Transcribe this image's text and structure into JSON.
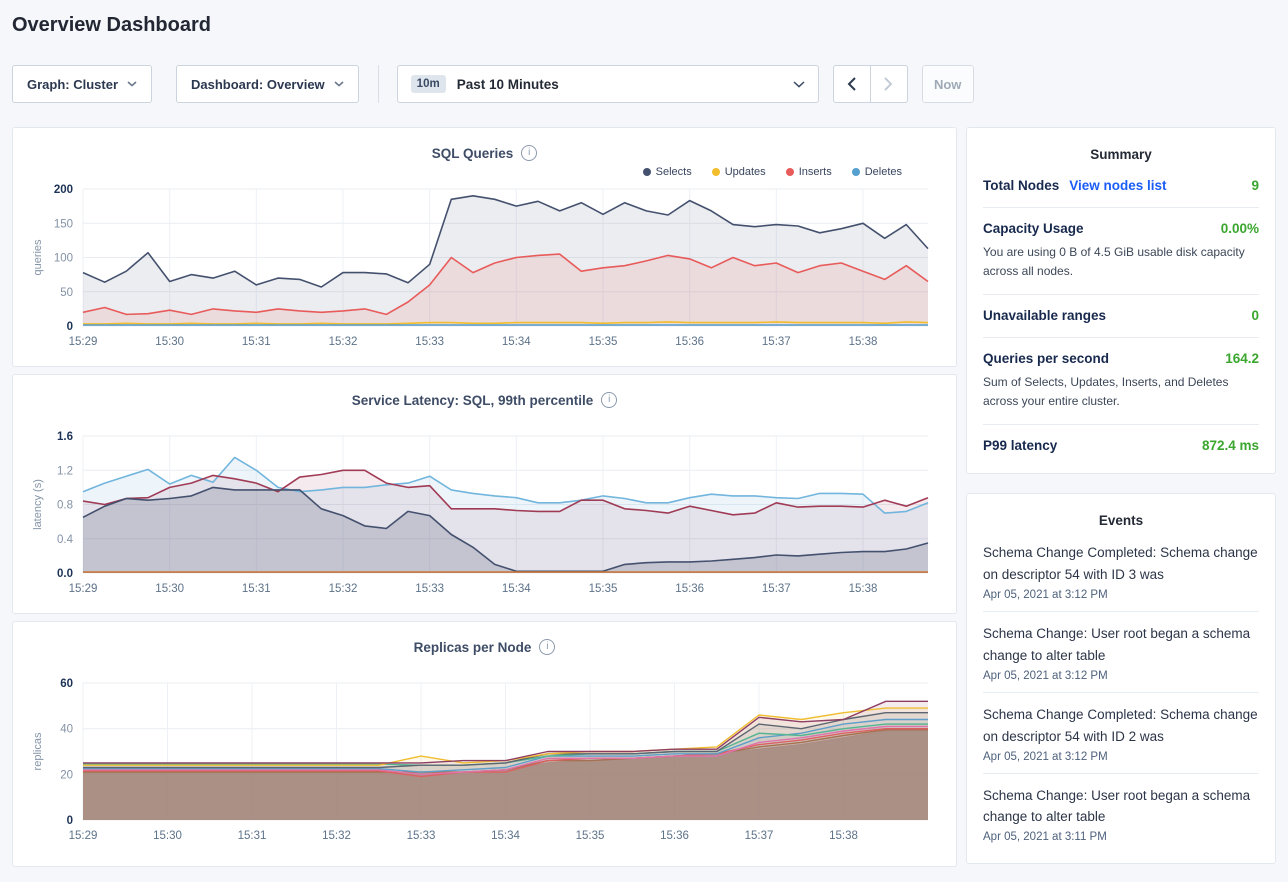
{
  "page": {
    "title": "Overview Dashboard"
  },
  "controls": {
    "graph_label": "Graph: Cluster",
    "dashboard_label": "Dashboard: Overview",
    "time_badge": "10m",
    "time_label": "Past 10 Minutes",
    "now_label": "Now"
  },
  "icons": {
    "chevron_down": "chevron-down-icon",
    "chevron_left": "chevron-left-icon",
    "chevron_right": "chevron-right-icon",
    "info": "info-icon"
  },
  "colors": {
    "accent_green": "#3aa62e",
    "link_blue": "#1b5df5",
    "selects_navy": "#44516e",
    "updates_yellow": "#f2be2d",
    "inserts_red": "#e85b5b",
    "deletes_blue": "#56a0d0"
  },
  "summary": {
    "title": "Summary",
    "items": [
      {
        "label": "Total Nodes",
        "link": "View nodes list",
        "value": "9"
      },
      {
        "label": "Capacity Usage",
        "value": "0.00%",
        "desc": "You are using 0 B of 4.5 GiB usable disk capacity across all nodes."
      },
      {
        "label": "Unavailable ranges",
        "value": "0"
      },
      {
        "label": "Queries per second",
        "value": "164.2",
        "desc": "Sum of Selects, Updates, Inserts, and Deletes across your entire cluster."
      },
      {
        "label": "P99 latency",
        "value": "872.4 ms"
      }
    ]
  },
  "events": {
    "title": "Events",
    "items": [
      {
        "text": "Schema Change Completed: Schema change on descriptor 54 with ID 3 was",
        "date": "Apr 05, 2021 at 3:12 PM"
      },
      {
        "text": "Schema Change: User root began a schema change to alter table",
        "date": "Apr 05, 2021 at 3:12 PM"
      },
      {
        "text": "Schema Change Completed: Schema change on descriptor 54 with ID 2 was",
        "date": "Apr 05, 2021 at 3:12 PM"
      },
      {
        "text": "Schema Change: User root began a schema change to alter table",
        "date": "Apr 05, 2021 at 3:11 PM"
      }
    ]
  },
  "chart_data": [
    {
      "type": "area",
      "title": "SQL Queries",
      "ylabel": "queries",
      "ylim": [
        0,
        200
      ],
      "yticks": [
        "0",
        "50",
        "100",
        "150",
        "200"
      ],
      "xticks": [
        "15:29",
        "15:30",
        "15:31",
        "15:32",
        "15:33",
        "15:34",
        "15:35",
        "15:36",
        "15:37",
        "15:38"
      ],
      "points_per_minute": 4,
      "grid": true,
      "legend_position": "top-right",
      "series": [
        {
          "name": "Selects",
          "color": "#44516e",
          "fill": 0.1,
          "values": [
            78,
            64,
            80,
            107,
            65,
            75,
            70,
            80,
            60,
            70,
            68,
            57,
            78,
            78,
            76,
            63,
            90,
            185,
            190,
            185,
            175,
            182,
            168,
            180,
            163,
            180,
            168,
            162,
            183,
            168,
            148,
            145,
            148,
            146,
            136,
            142,
            150,
            128,
            148,
            113
          ]
        },
        {
          "name": "Updates",
          "color": "#f2be2d",
          "fill": 0,
          "values": [
            3,
            3,
            4,
            3,
            3,
            4,
            3,
            3,
            4,
            3,
            3,
            4,
            3,
            3,
            3,
            4,
            5,
            5,
            4,
            4,
            5,
            5,
            5,
            5,
            4,
            5,
            5,
            6,
            5,
            5,
            5,
            5,
            6,
            5,
            5,
            5,
            5,
            4,
            6,
            5
          ]
        },
        {
          "name": "Inserts",
          "color": "#e85b5b",
          "fill": 0.12,
          "values": [
            20,
            27,
            17,
            18,
            23,
            17,
            25,
            22,
            20,
            25,
            22,
            20,
            22,
            25,
            17,
            35,
            60,
            100,
            78,
            92,
            100,
            103,
            105,
            80,
            85,
            88,
            95,
            103,
            98,
            85,
            100,
            88,
            92,
            78,
            88,
            92,
            80,
            68,
            88,
            65
          ]
        },
        {
          "name": "Deletes",
          "color": "#56a0d0",
          "fill": 0,
          "values": [
            1.5,
            1.5,
            1.5,
            1.5,
            1.5,
            1.5,
            1.5,
            1.5,
            1.5,
            1.5,
            1.5,
            1.5,
            1.5,
            1.5,
            1.5,
            1.5,
            1.5,
            1.5,
            1.5,
            1.5,
            1.5,
            1.5,
            1.5,
            1.5,
            1.5,
            1.5,
            1.5,
            1.5,
            1.5,
            1.5,
            1.5,
            1.5,
            1.5,
            1.5,
            1.5,
            1.5,
            1.5,
            1.5,
            1.5,
            1.5
          ]
        }
      ]
    },
    {
      "type": "area",
      "title": "Service Latency: SQL, 99th percentile",
      "ylabel": "latency (s)",
      "ylim": [
        0,
        1.6
      ],
      "yticks": [
        "0.0",
        "0.4",
        "0.8",
        "1.2",
        "1.6"
      ],
      "xticks": [
        "15:29",
        "15:30",
        "15:31",
        "15:32",
        "15:33",
        "15:34",
        "15:35",
        "15:36",
        "15:37",
        "15:38"
      ],
      "points_per_minute": 4,
      "grid": true,
      "legend_position": "none",
      "series": [
        {
          "color": "#72b5dd",
          "fill": 0.13,
          "values": [
            0.95,
            1.05,
            1.13,
            1.21,
            1.04,
            1.14,
            1.06,
            1.35,
            1.2,
            1.0,
            0.95,
            0.97,
            1.0,
            1.0,
            1.03,
            1.05,
            1.13,
            0.97,
            0.93,
            0.9,
            0.88,
            0.82,
            0.82,
            0.85,
            0.9,
            0.87,
            0.82,
            0.82,
            0.88,
            0.92,
            0.9,
            0.9,
            0.88,
            0.87,
            0.93,
            0.93,
            0.92,
            0.7,
            0.72,
            0.82
          ]
        },
        {
          "color": "#a03b55",
          "fill": 0.1,
          "values": [
            0.84,
            0.8,
            0.87,
            0.88,
            1.0,
            1.05,
            1.14,
            1.1,
            1.05,
            0.95,
            1.12,
            1.15,
            1.2,
            1.2,
            1.05,
            1.0,
            1.02,
            0.75,
            0.75,
            0.75,
            0.73,
            0.72,
            0.72,
            0.85,
            0.85,
            0.75,
            0.73,
            0.7,
            0.78,
            0.73,
            0.68,
            0.7,
            0.82,
            0.77,
            0.78,
            0.78,
            0.77,
            0.85,
            0.78,
            0.88
          ]
        },
        {
          "color": "#44516e",
          "fill": 0.2,
          "values": [
            0.65,
            0.78,
            0.87,
            0.85,
            0.87,
            0.9,
            1.0,
            0.97,
            0.97,
            0.97,
            0.97,
            0.75,
            0.67,
            0.55,
            0.52,
            0.72,
            0.67,
            0.45,
            0.3,
            0.1,
            0.02,
            0.02,
            0.02,
            0.02,
            0.02,
            0.1,
            0.12,
            0.13,
            0.13,
            0.14,
            0.16,
            0.18,
            0.21,
            0.2,
            0.22,
            0.24,
            0.25,
            0.25,
            0.28,
            0.35
          ]
        },
        {
          "color": "#c8773c",
          "fill": 0,
          "values": [
            0.01,
            0.01,
            0.01,
            0.01,
            0.01,
            0.01,
            0.01,
            0.01,
            0.01,
            0.01,
            0.01,
            0.01,
            0.01,
            0.01,
            0.01,
            0.01,
            0.01,
            0.01,
            0.01,
            0.01,
            0.01,
            0.01,
            0.01,
            0.01,
            0.01,
            0.01,
            0.01,
            0.01,
            0.01,
            0.01,
            0.01,
            0.01,
            0.01,
            0.01,
            0.01,
            0.01,
            0.01,
            0.01,
            0.01,
            0.01
          ]
        }
      ]
    },
    {
      "type": "area",
      "title": "Replicas per Node",
      "ylabel": "replicas",
      "ylim": [
        0,
        60
      ],
      "yticks": [
        "0",
        "20",
        "40",
        "60"
      ],
      "xticks": [
        "15:29",
        "15:30",
        "15:31",
        "15:32",
        "15:33",
        "15:34",
        "15:35",
        "15:36",
        "15:37",
        "15:38"
      ],
      "points_per_minute": 2,
      "grid": true,
      "legend_position": "none",
      "series": [
        {
          "color": "#ab8d84",
          "fill": 0.72,
          "w": 1.4,
          "values": [
            20.5,
            20.5,
            20.5,
            20.5,
            20.5,
            20.5,
            20.5,
            20.5,
            21,
            21,
            22,
            25,
            26,
            27,
            28,
            29,
            31,
            33,
            36,
            39,
            39
          ]
        },
        {
          "color": "#a5714f",
          "fill": 0.1,
          "w": 1.4,
          "values": [
            21,
            21,
            21,
            21,
            21,
            21,
            21,
            21,
            21,
            21,
            22,
            26,
            26,
            27,
            28,
            29,
            32,
            34,
            37,
            39.5,
            39.5
          ]
        },
        {
          "color": "#dd6060",
          "fill": 0.08,
          "w": 1.4,
          "values": [
            21.5,
            21.5,
            21.5,
            21.5,
            21.5,
            21.5,
            21.5,
            21.5,
            19,
            21,
            21,
            26,
            27,
            27,
            28,
            29,
            33,
            35,
            38,
            40,
            40
          ]
        },
        {
          "color": "#df74ad",
          "fill": 0.08,
          "w": 1.4,
          "values": [
            22,
            22,
            22,
            22,
            22,
            22,
            22,
            22,
            20,
            21,
            22,
            27,
            27,
            27,
            28,
            28,
            34,
            36,
            39,
            41,
            41
          ]
        },
        {
          "color": "#5f9ec9",
          "fill": 0.08,
          "w": 1.4,
          "values": [
            22.5,
            22.5,
            22.5,
            22.5,
            22.5,
            22.5,
            22.5,
            22.5,
            21,
            22,
            23,
            28,
            28,
            28,
            29,
            29,
            36,
            38,
            42,
            44,
            44
          ]
        },
        {
          "color": "#55b592",
          "fill": 0.08,
          "w": 1.4,
          "values": [
            24.5,
            24.5,
            24.5,
            24.5,
            24.5,
            24.5,
            24.5,
            24.5,
            24,
            24,
            25,
            28,
            29,
            29,
            30,
            30,
            38,
            37,
            40,
            42,
            42
          ]
        },
        {
          "color": "#5c6570",
          "fill": 0.1,
          "w": 1.4,
          "values": [
            23,
            23,
            23,
            23,
            23,
            23,
            23,
            23,
            24,
            24,
            25,
            29,
            29,
            29,
            30,
            30,
            42,
            40,
            44,
            47,
            47
          ]
        },
        {
          "color": "#f0bd30",
          "fill": 0.1,
          "w": 1.4,
          "values": [
            24,
            24,
            24,
            24,
            24,
            24,
            24,
            24,
            28,
            25,
            26,
            29,
            30,
            30,
            31,
            32,
            46,
            44,
            47,
            49,
            49
          ]
        },
        {
          "color": "#8f3e63",
          "fill": 0.1,
          "w": 1.4,
          "values": [
            25,
            25,
            25,
            25,
            25,
            25,
            25,
            25,
            25,
            26,
            26,
            30,
            30,
            30,
            31,
            31,
            45,
            43,
            44,
            52,
            52
          ]
        }
      ]
    }
  ]
}
